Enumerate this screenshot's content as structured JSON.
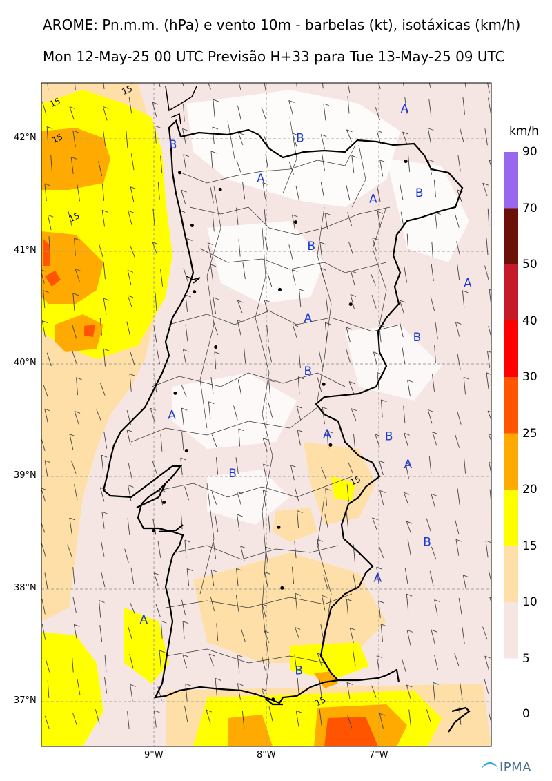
{
  "header": {
    "title_line1": "AROME: Pn.m.m. (hPa) e vento 10m - barbelas (kt), isotáxicas (km/h)",
    "title_line2": "Mon 12-May-25 00 UTC Previsão H+33 para Tue 13-May-25 09 UTC"
  },
  "colorbar": {
    "unit": "km/h",
    "levels": [
      {
        "label": "90",
        "color": "#9966ee"
      },
      {
        "label": "70",
        "color": "#6b1108"
      },
      {
        "label": "50",
        "color": "#c41a2a"
      },
      {
        "label": "40",
        "color": "#ff0000"
      },
      {
        "label": "30",
        "color": "#ff5500"
      },
      {
        "label": "25",
        "color": "#ffaa00"
      },
      {
        "label": "20",
        "color": "#ffff00"
      },
      {
        "label": "15",
        "color": "#ffdfa8"
      },
      {
        "label": "10",
        "color": "#f5e6e3"
      },
      {
        "label": "5",
        "color": "#ffffff"
      },
      {
        "label": "0",
        "color": ""
      }
    ]
  },
  "axes": {
    "lon_labels": [
      "9°W",
      "8°W",
      "7°W"
    ],
    "lat_labels": [
      "42°N",
      "41°N",
      "40°N",
      "39°N",
      "38°N",
      "37°N"
    ]
  },
  "pressure_markers": [
    {
      "label": "A",
      "lon": -6.77,
      "lat": 42.27
    },
    {
      "label": "B",
      "lon": -7.7,
      "lat": 42.01
    },
    {
      "label": "B",
      "lon": -8.83,
      "lat": 41.95
    },
    {
      "label": "A",
      "lon": -8.05,
      "lat": 41.65
    },
    {
      "label": "B",
      "lon": -6.64,
      "lat": 41.52
    },
    {
      "label": "A",
      "lon": -7.05,
      "lat": 41.47
    },
    {
      "label": "B",
      "lon": -7.6,
      "lat": 41.05
    },
    {
      "label": "A",
      "lon": -6.21,
      "lat": 40.72
    },
    {
      "label": "A",
      "lon": -7.63,
      "lat": 40.41
    },
    {
      "label": "B",
      "lon": -6.66,
      "lat": 40.24
    },
    {
      "label": "B",
      "lon": -7.63,
      "lat": 39.94
    },
    {
      "label": "A",
      "lon": -8.84,
      "lat": 39.55
    },
    {
      "label": "A",
      "lon": -7.46,
      "lat": 39.38
    },
    {
      "label": "B",
      "lon": -6.91,
      "lat": 39.36
    },
    {
      "label": "A",
      "lon": -6.74,
      "lat": 39.11
    },
    {
      "label": "B",
      "lon": -8.3,
      "lat": 39.03
    },
    {
      "label": "B",
      "lon": -6.57,
      "lat": 38.42
    },
    {
      "label": "A",
      "lon": -7.01,
      "lat": 38.1
    },
    {
      "label": "A",
      "lon": -9.09,
      "lat": 37.73
    },
    {
      "label": "B",
      "lon": -7.71,
      "lat": 37.28
    }
  ],
  "contour_labels": [
    {
      "text": "15",
      "lon": -9.27,
      "lat": 42.39
    },
    {
      "text": "15",
      "lon": -9.91,
      "lat": 42.28
    },
    {
      "text": "15",
      "lon": -9.89,
      "lat": 41.96
    },
    {
      "text": "15",
      "lon": -9.74,
      "lat": 41.26
    },
    {
      "text": "15",
      "lon": -7.24,
      "lat": 38.92
    },
    {
      "text": "15",
      "lon": -7.55,
      "lat": 36.96
    }
  ],
  "cities": [
    {
      "lon": -6.76,
      "lat": 41.8
    },
    {
      "lon": -8.41,
      "lat": 41.55
    },
    {
      "lon": -8.66,
      "lat": 41.23
    },
    {
      "lon": -7.74,
      "lat": 41.26
    },
    {
      "lon": -8.64,
      "lat": 40.64
    },
    {
      "lon": -7.88,
      "lat": 40.66
    },
    {
      "lon": -7.25,
      "lat": 40.53
    },
    {
      "lon": -8.45,
      "lat": 40.15
    },
    {
      "lon": -7.49,
      "lat": 39.82
    },
    {
      "lon": -8.81,
      "lat": 39.74
    },
    {
      "lon": -8.71,
      "lat": 39.23
    },
    {
      "lon": -7.43,
      "lat": 39.28
    },
    {
      "lon": -8.91,
      "lat": 38.77
    },
    {
      "lon": -9.0,
      "lat": 38.52
    },
    {
      "lon": -7.89,
      "lat": 38.55
    },
    {
      "lon": -7.86,
      "lat": 38.01
    },
    {
      "lon": -7.94,
      "lat": 37.02
    },
    {
      "lon": -8.77,
      "lat": 41.7
    }
  ],
  "logo": {
    "text": "IPMA"
  }
}
